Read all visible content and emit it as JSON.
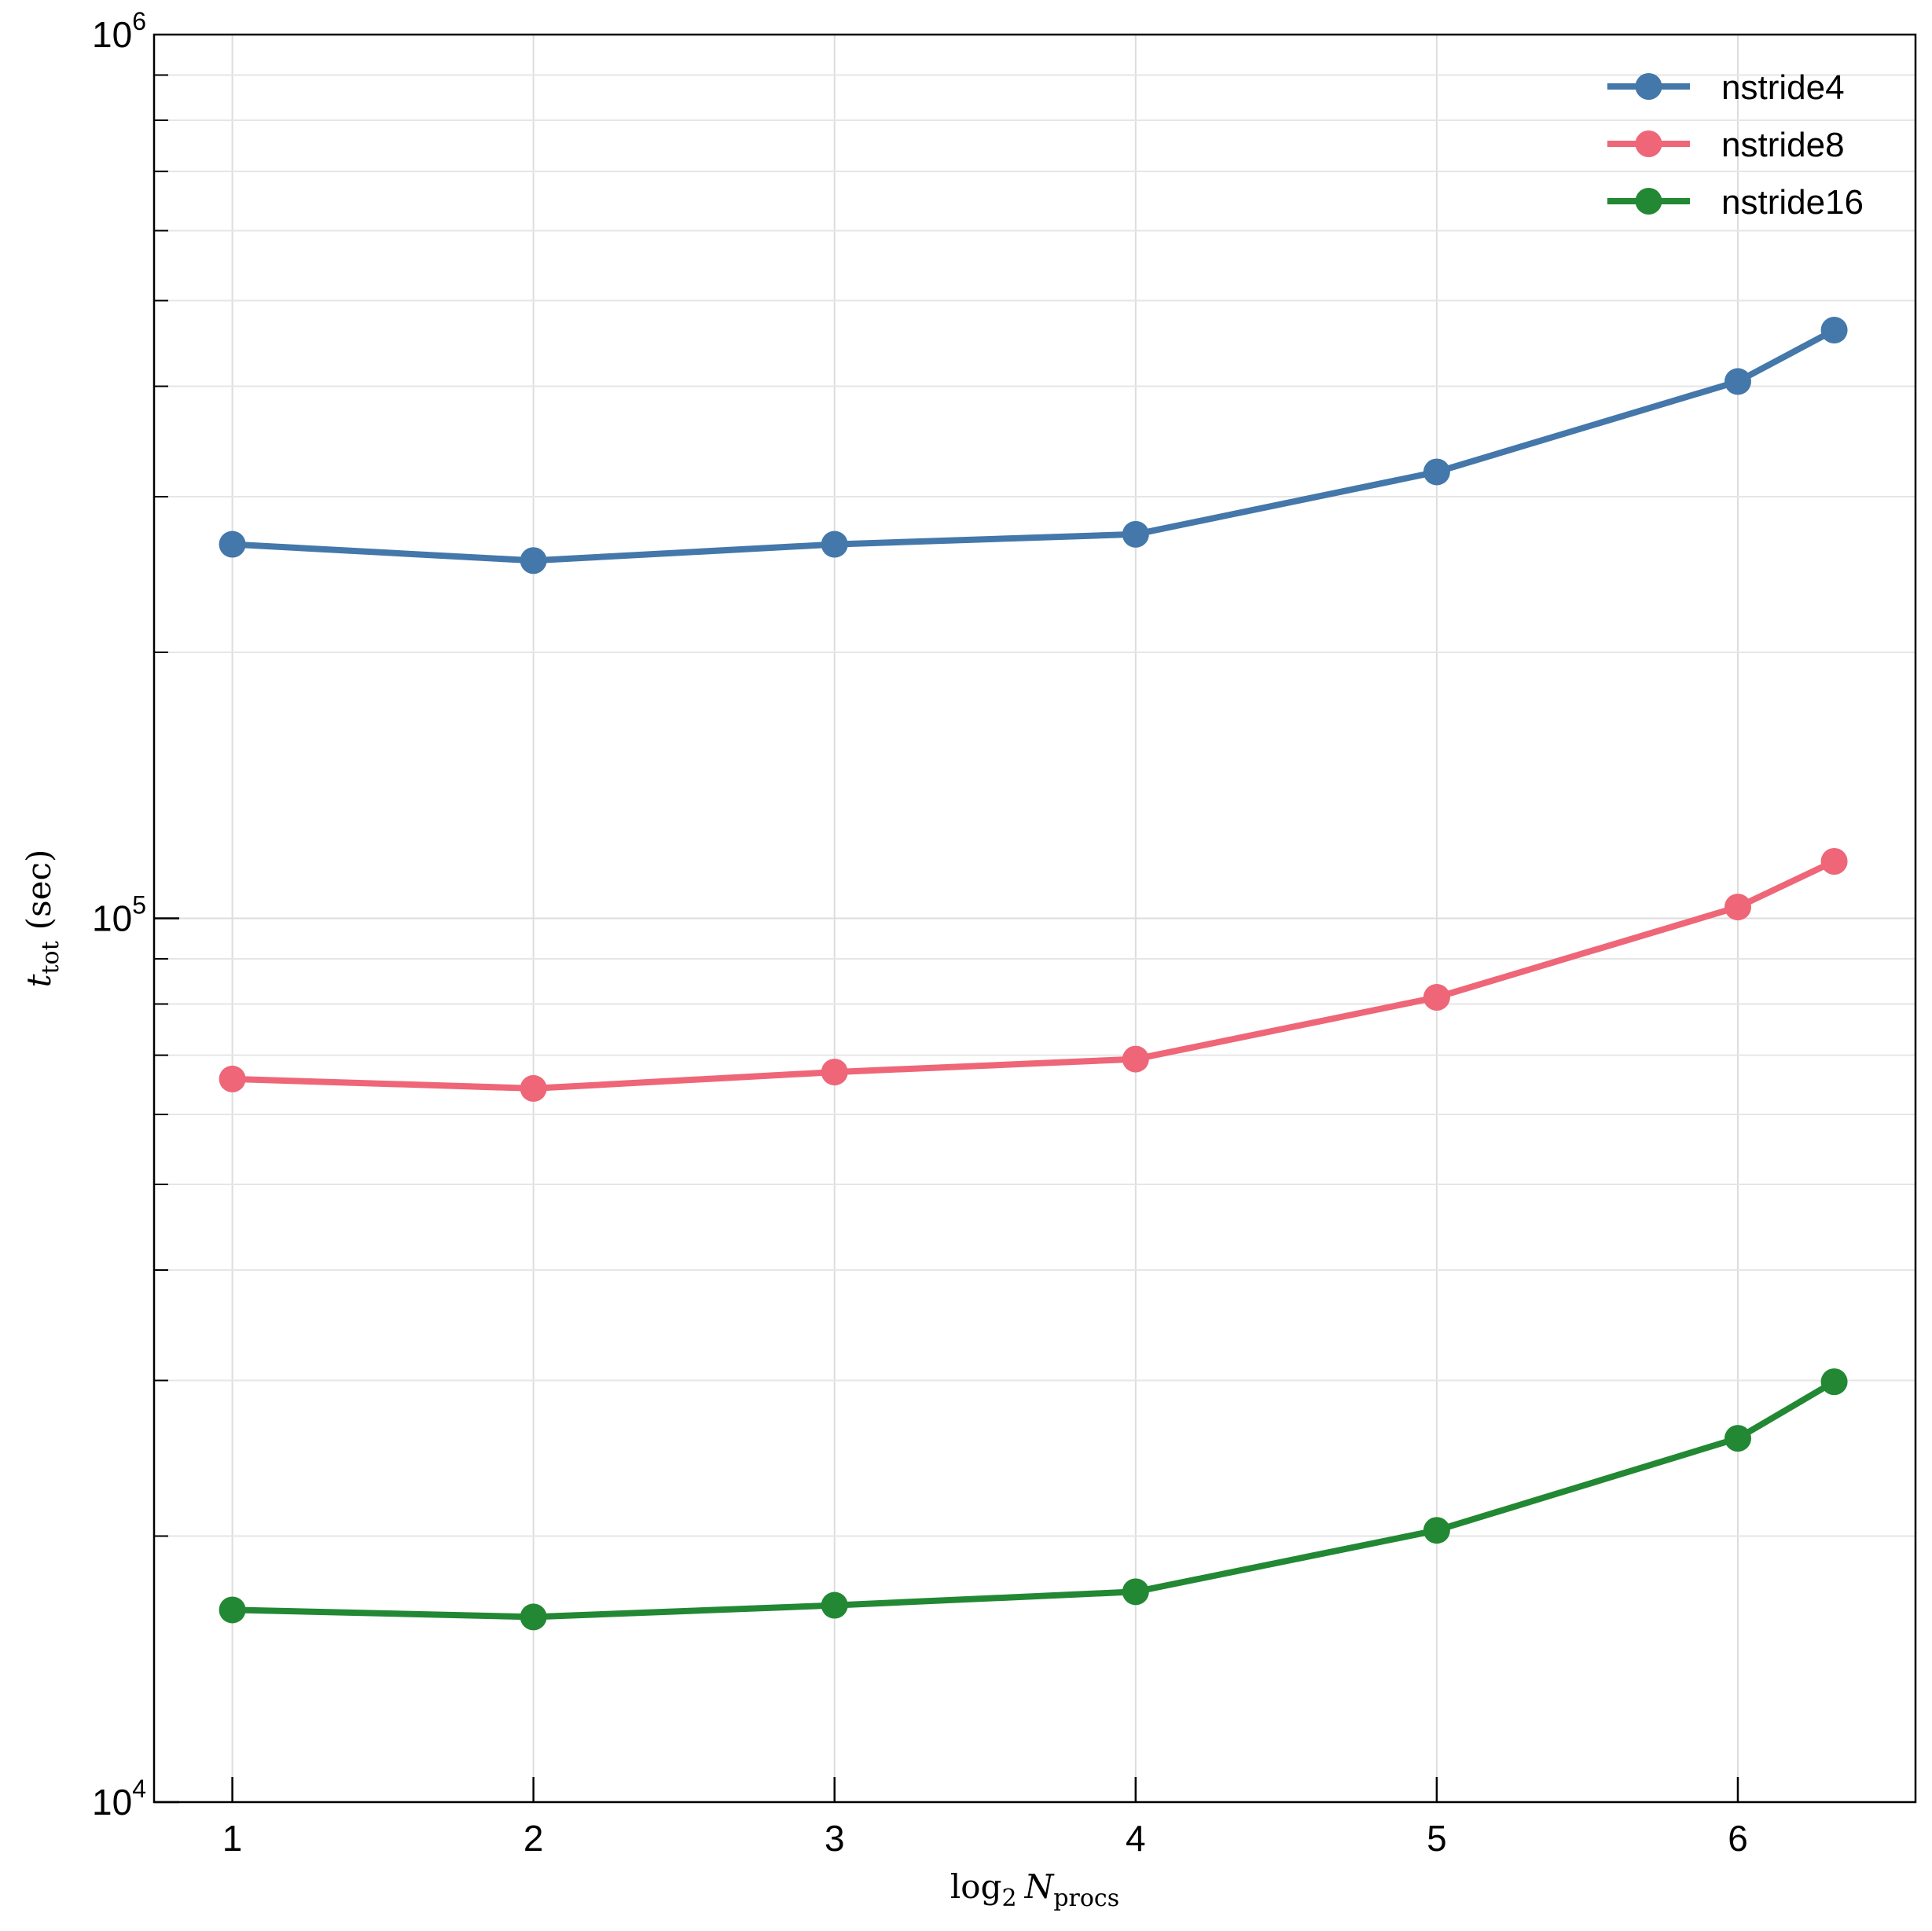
{
  "chart_data": {
    "type": "line",
    "title": "",
    "xlabel": {
      "main": "log",
      "sub1": "2",
      "var": "N",
      "sub2": "procs"
    },
    "ylabel": {
      "var": "t",
      "sub": "tot",
      "unit": "(sec)"
    },
    "xlim": [
      0.74,
      6.59
    ],
    "ylim": [
      10000,
      1000000
    ],
    "yscale": "log",
    "grid": true,
    "legend_position": "top-right",
    "xticks": [
      1,
      2,
      3,
      4,
      5,
      6
    ],
    "xtick_labels": [
      "1",
      "2",
      "3",
      "4",
      "5",
      "6"
    ],
    "yticks": [
      10000,
      100000,
      1000000
    ],
    "ytick_labels": [
      {
        "base": "10",
        "exp": "4"
      },
      {
        "base": "10",
        "exp": "5"
      },
      {
        "base": "10",
        "exp": "6"
      }
    ],
    "x": [
      1,
      2,
      3,
      4,
      5,
      6,
      6.32
    ],
    "series": [
      {
        "name": "nstride4",
        "color": "#4477aa",
        "values": [
          265000,
          254000,
          265000,
          272000,
          320000,
          405000,
          463000
        ]
      },
      {
        "name": "nstride8",
        "color": "#ee6677",
        "values": [
          65800,
          64200,
          67000,
          69300,
          81400,
          103000,
          116000
        ]
      },
      {
        "name": "nstride16",
        "color": "#228833",
        "values": [
          16500,
          16200,
          16700,
          17300,
          20300,
          25800,
          29900
        ]
      }
    ]
  }
}
